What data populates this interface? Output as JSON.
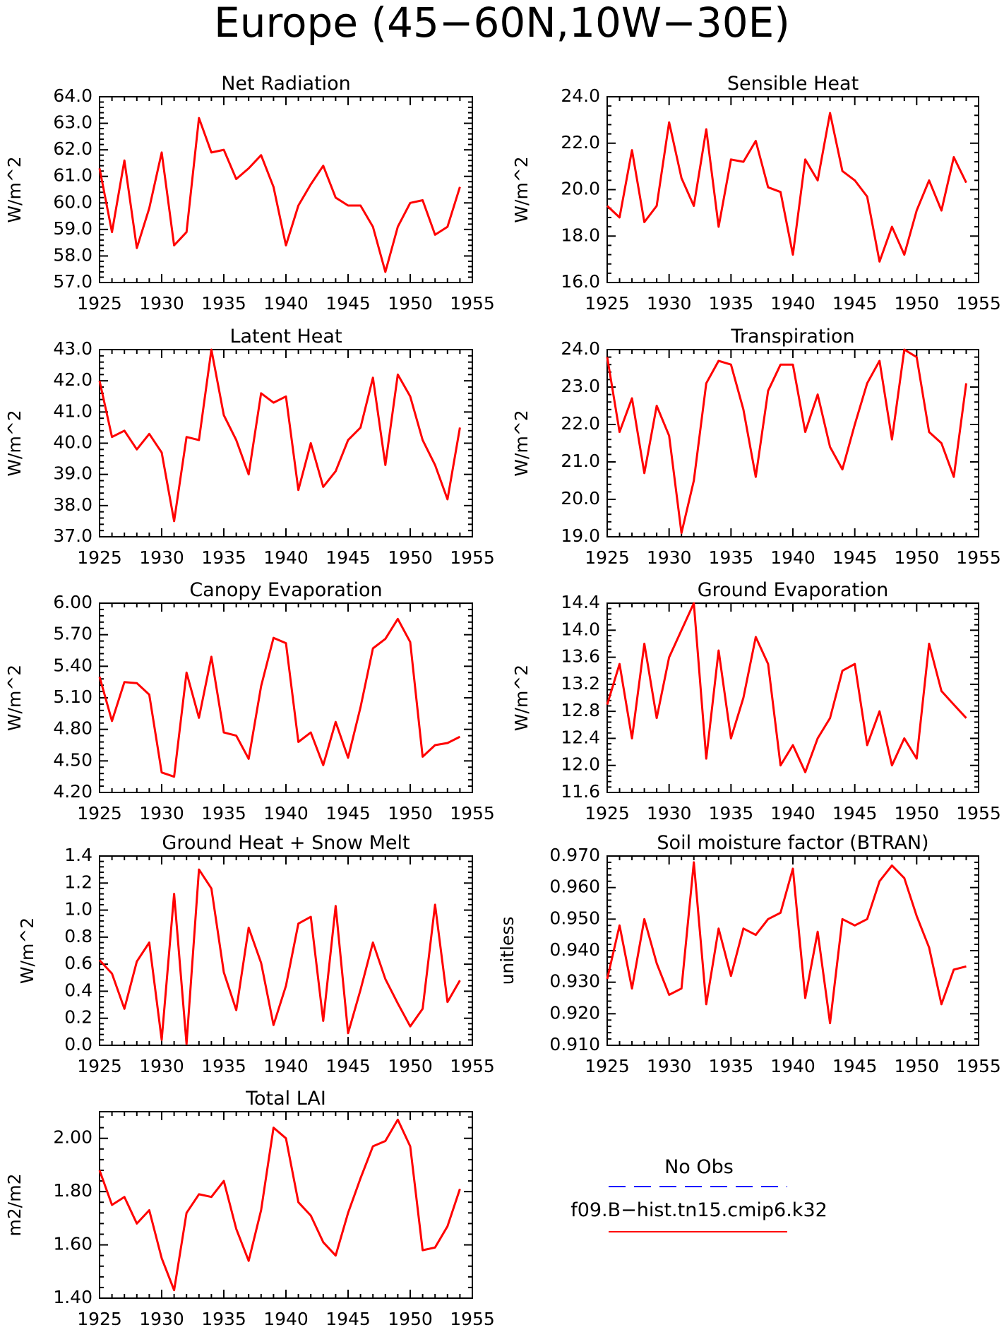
{
  "figure": {
    "title": "Europe (45−60N,10W−30E)"
  },
  "colors": {
    "model": "#ff0000",
    "obs": "#0000ff",
    "frame": "#000000"
  },
  "legend": {
    "obs_label": "No Obs",
    "model_label": "f09.B−hist.tn15.cmip6.k32"
  },
  "chart_data": [
    {
      "type": "line",
      "title": "Net Radiation",
      "ylabel": "W/m^2",
      "xlim": [
        1925,
        1955
      ],
      "ylim": [
        57.0,
        64.0
      ],
      "xticks": [
        1925,
        1930,
        1935,
        1940,
        1945,
        1950,
        1955
      ],
      "yticks": [
        "57.0",
        "58.0",
        "59.0",
        "60.0",
        "61.0",
        "62.0",
        "63.0",
        "64.0"
      ],
      "x": [
        1925,
        1926,
        1927,
        1928,
        1929,
        1930,
        1931,
        1932,
        1933,
        1934,
        1935,
        1936,
        1937,
        1938,
        1939,
        1940,
        1941,
        1942,
        1943,
        1944,
        1945,
        1946,
        1947,
        1948,
        1949,
        1950,
        1951,
        1952,
        1953,
        1954
      ],
      "series": [
        {
          "values": [
            61.3,
            58.9,
            61.6,
            58.3,
            59.8,
            61.9,
            58.4,
            58.9,
            63.2,
            61.9,
            62.0,
            60.9,
            61.3,
            61.8,
            60.6,
            58.4,
            59.9,
            60.7,
            61.4,
            60.2,
            59.9,
            59.9,
            59.1,
            57.4,
            59.1,
            60.0,
            60.1,
            58.8,
            59.1,
            60.6
          ]
        }
      ]
    },
    {
      "type": "line",
      "title": "Sensible Heat",
      "ylabel": "W/m^2",
      "xlim": [
        1925,
        1955
      ],
      "ylim": [
        16.0,
        24.0
      ],
      "xticks": [
        1925,
        1930,
        1935,
        1940,
        1945,
        1950,
        1955
      ],
      "yticks": [
        "16.0",
        "18.0",
        "20.0",
        "22.0",
        "24.0"
      ],
      "x": [
        1925,
        1926,
        1927,
        1928,
        1929,
        1930,
        1931,
        1932,
        1933,
        1934,
        1935,
        1936,
        1937,
        1938,
        1939,
        1940,
        1941,
        1942,
        1943,
        1944,
        1945,
        1946,
        1947,
        1948,
        1949,
        1950,
        1951,
        1952,
        1953,
        1954
      ],
      "series": [
        {
          "values": [
            19.3,
            18.8,
            21.7,
            18.6,
            19.3,
            22.9,
            20.5,
            19.3,
            22.6,
            18.4,
            21.3,
            21.2,
            22.1,
            20.1,
            19.9,
            17.2,
            21.3,
            20.4,
            23.3,
            20.8,
            20.4,
            19.7,
            16.9,
            18.4,
            17.2,
            19.1,
            20.4,
            19.1,
            21.4,
            20.3
          ]
        }
      ]
    },
    {
      "type": "line",
      "title": "Latent Heat",
      "ylabel": "W/m^2",
      "xlim": [
        1925,
        1955
      ],
      "ylim": [
        37.0,
        43.0
      ],
      "xticks": [
        1925,
        1930,
        1935,
        1940,
        1945,
        1950,
        1955
      ],
      "yticks": [
        "37.0",
        "38.0",
        "39.0",
        "40.0",
        "41.0",
        "42.0",
        "43.0"
      ],
      "x": [
        1925,
        1926,
        1927,
        1928,
        1929,
        1930,
        1931,
        1932,
        1933,
        1934,
        1935,
        1936,
        1937,
        1938,
        1939,
        1940,
        1941,
        1942,
        1943,
        1944,
        1945,
        1946,
        1947,
        1948,
        1949,
        1950,
        1951,
        1952,
        1953,
        1954
      ],
      "series": [
        {
          "values": [
            42.0,
            40.2,
            40.4,
            39.8,
            40.3,
            39.7,
            37.5,
            40.2,
            40.1,
            43.0,
            40.9,
            40.1,
            39.0,
            41.6,
            41.3,
            41.5,
            38.5,
            40.0,
            38.6,
            39.1,
            40.1,
            40.5,
            42.1,
            39.3,
            42.2,
            41.5,
            40.1,
            39.3,
            38.2,
            40.5
          ]
        }
      ]
    },
    {
      "type": "line",
      "title": "Transpiration",
      "ylabel": "W/m^2",
      "xlim": [
        1925,
        1955
      ],
      "ylim": [
        19.0,
        24.0
      ],
      "xticks": [
        1925,
        1930,
        1935,
        1940,
        1945,
        1950,
        1955
      ],
      "yticks": [
        "19.0",
        "20.0",
        "21.0",
        "22.0",
        "23.0",
        "24.0"
      ],
      "x": [
        1925,
        1926,
        1927,
        1928,
        1929,
        1930,
        1931,
        1932,
        1933,
        1934,
        1935,
        1936,
        1937,
        1938,
        1939,
        1940,
        1941,
        1942,
        1943,
        1944,
        1945,
        1946,
        1947,
        1948,
        1949,
        1950,
        1951,
        1952,
        1953,
        1954
      ],
      "series": [
        {
          "values": [
            23.8,
            21.8,
            22.7,
            20.7,
            22.5,
            21.7,
            19.1,
            20.5,
            23.1,
            23.7,
            23.6,
            22.4,
            20.6,
            22.9,
            23.6,
            23.6,
            21.8,
            22.8,
            21.4,
            20.8,
            22.0,
            23.1,
            23.7,
            21.6,
            24.0,
            23.8,
            21.8,
            21.5,
            20.6,
            23.1
          ]
        }
      ]
    },
    {
      "type": "line",
      "title": "Canopy Evaporation",
      "ylabel": "W/m^2",
      "xlim": [
        1925,
        1955
      ],
      "ylim": [
        4.2,
        6.0
      ],
      "xticks": [
        1925,
        1930,
        1935,
        1940,
        1945,
        1950,
        1955
      ],
      "yticks": [
        "4.20",
        "4.50",
        "4.80",
        "5.10",
        "5.40",
        "5.70",
        "6.00"
      ],
      "x": [
        1925,
        1926,
        1927,
        1928,
        1929,
        1930,
        1931,
        1932,
        1933,
        1934,
        1935,
        1936,
        1937,
        1938,
        1939,
        1940,
        1941,
        1942,
        1943,
        1944,
        1945,
        1946,
        1947,
        1948,
        1949,
        1950,
        1951,
        1952,
        1953,
        1954
      ],
      "series": [
        {
          "values": [
            5.3,
            4.88,
            5.25,
            5.24,
            5.13,
            4.39,
            4.35,
            5.34,
            4.91,
            5.49,
            4.77,
            4.74,
            4.52,
            5.21,
            5.67,
            5.62,
            4.68,
            4.77,
            4.46,
            4.87,
            4.53,
            5.01,
            5.57,
            5.66,
            5.85,
            5.63,
            4.54,
            4.65,
            4.67,
            4.73
          ]
        }
      ]
    },
    {
      "type": "line",
      "title": "Ground Evaporation",
      "ylabel": "W/m^2",
      "xlim": [
        1925,
        1955
      ],
      "ylim": [
        11.6,
        14.4
      ],
      "xticks": [
        1925,
        1930,
        1935,
        1940,
        1945,
        1950,
        1955
      ],
      "yticks": [
        "11.6",
        "12.0",
        "12.4",
        "12.8",
        "13.2",
        "13.6",
        "14.0",
        "14.4"
      ],
      "x": [
        1925,
        1926,
        1927,
        1928,
        1929,
        1930,
        1931,
        1932,
        1933,
        1934,
        1935,
        1936,
        1937,
        1938,
        1939,
        1940,
        1941,
        1942,
        1943,
        1944,
        1945,
        1946,
        1947,
        1948,
        1949,
        1950,
        1951,
        1952,
        1953,
        1954
      ],
      "series": [
        {
          "values": [
            12.9,
            13.5,
            12.4,
            13.8,
            12.7,
            13.6,
            14.0,
            14.4,
            12.1,
            13.7,
            12.4,
            13.0,
            13.9,
            13.5,
            12.0,
            12.3,
            11.9,
            12.4,
            12.7,
            13.4,
            13.5,
            12.3,
            12.8,
            12.0,
            12.4,
            12.1,
            13.8,
            13.1,
            12.9,
            12.7
          ]
        }
      ]
    },
    {
      "type": "line",
      "title": "Ground Heat + Snow Melt",
      "ylabel": "W/m^2",
      "xlim": [
        1925,
        1955
      ],
      "ylim": [
        0.0,
        1.4
      ],
      "xticks": [
        1925,
        1930,
        1935,
        1940,
        1945,
        1950,
        1955
      ],
      "yticks": [
        "0.0",
        "0.2",
        "0.4",
        "0.6",
        "0.8",
        "1.0",
        "1.2",
        "1.4"
      ],
      "x": [
        1925,
        1926,
        1927,
        1928,
        1929,
        1930,
        1931,
        1932,
        1933,
        1934,
        1935,
        1936,
        1937,
        1938,
        1939,
        1940,
        1941,
        1942,
        1943,
        1944,
        1945,
        1946,
        1947,
        1948,
        1949,
        1950,
        1951,
        1952,
        1953,
        1954
      ],
      "series": [
        {
          "values": [
            0.63,
            0.53,
            0.27,
            0.62,
            0.76,
            0.04,
            1.12,
            0.01,
            1.3,
            1.16,
            0.54,
            0.26,
            0.87,
            0.61,
            0.15,
            0.44,
            0.9,
            0.95,
            0.18,
            1.03,
            0.09,
            0.41,
            0.76,
            0.49,
            0.31,
            0.14,
            0.27,
            1.04,
            0.32,
            0.48
          ]
        }
      ]
    },
    {
      "type": "line",
      "title": "Soil moisture factor (BTRAN)",
      "ylabel": "unitless",
      "xlim": [
        1925,
        1955
      ],
      "ylim": [
        0.91,
        0.97
      ],
      "xticks": [
        1925,
        1930,
        1935,
        1940,
        1945,
        1950,
        1955
      ],
      "yticks": [
        "0.910",
        "0.920",
        "0.930",
        "0.940",
        "0.950",
        "0.960",
        "0.970"
      ],
      "x": [
        1925,
        1926,
        1927,
        1928,
        1929,
        1930,
        1931,
        1932,
        1933,
        1934,
        1935,
        1936,
        1937,
        1938,
        1939,
        1940,
        1941,
        1942,
        1943,
        1944,
        1945,
        1946,
        1947,
        1948,
        1949,
        1950,
        1951,
        1952,
        1953,
        1954
      ],
      "series": [
        {
          "values": [
            0.931,
            0.948,
            0.928,
            0.95,
            0.936,
            0.926,
            0.928,
            0.968,
            0.923,
            0.947,
            0.932,
            0.947,
            0.945,
            0.95,
            0.952,
            0.966,
            0.925,
            0.946,
            0.917,
            0.95,
            0.948,
            0.95,
            0.962,
            0.967,
            0.963,
            0.951,
            0.941,
            0.923,
            0.934,
            0.935
          ]
        }
      ]
    },
    {
      "type": "line",
      "title": "Total LAI",
      "ylabel": "m2/m2",
      "xlim": [
        1925,
        1955
      ],
      "ylim": [
        1.4,
        2.1
      ],
      "xticks": [
        1925,
        1930,
        1935,
        1940,
        1945,
        1950,
        1955
      ],
      "yticks": [
        "1.40",
        "1.60",
        "1.80",
        "2.00"
      ],
      "x": [
        1925,
        1926,
        1927,
        1928,
        1929,
        1930,
        1931,
        1932,
        1933,
        1934,
        1935,
        1936,
        1937,
        1938,
        1939,
        1940,
        1941,
        1942,
        1943,
        1944,
        1945,
        1946,
        1947,
        1948,
        1949,
        1950,
        1951,
        1952,
        1953,
        1954
      ],
      "series": [
        {
          "values": [
            1.88,
            1.75,
            1.78,
            1.68,
            1.73,
            1.55,
            1.43,
            1.72,
            1.79,
            1.78,
            1.84,
            1.66,
            1.54,
            1.73,
            2.04,
            2.0,
            1.76,
            1.71,
            1.61,
            1.56,
            1.72,
            1.85,
            1.97,
            1.99,
            2.07,
            1.97,
            1.58,
            1.59,
            1.67,
            1.81
          ]
        }
      ]
    }
  ]
}
